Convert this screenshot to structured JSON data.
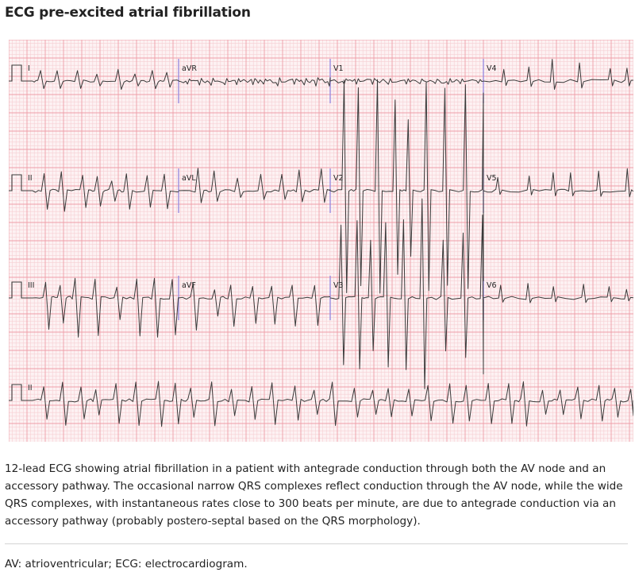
{
  "figure": {
    "title": "ECG pre-excited atrial fibrillation",
    "caption": "12-lead ECG showing atrial fibrillation in a patient with antegrade conduction through both the AV node and an accessory pathway. The occasional narrow QRS complexes reflect conduction through the AV node, while the wide QRS complexes, with instantaneous rates close to 300 beats per minute, are due to antegrade conduction via an accessory pathway (probably postero-septal based on the QRS morphology).",
    "abbreviations": "AV: atrioventricular; ECG: electrocardiogram."
  },
  "ecg": {
    "rows": [
      {
        "leads": [
          {
            "label": "I"
          },
          {
            "label": "aVR"
          },
          {
            "label": "V1"
          },
          {
            "label": "V4"
          }
        ]
      },
      {
        "leads": [
          {
            "label": "II"
          },
          {
            "label": "aVL"
          },
          {
            "label": "V2"
          },
          {
            "label": "V5"
          }
        ]
      },
      {
        "leads": [
          {
            "label": "III"
          },
          {
            "label": "aVF"
          },
          {
            "label": "V3"
          },
          {
            "label": "V6"
          }
        ]
      },
      {
        "leads": [
          {
            "label": "II"
          }
        ]
      }
    ]
  },
  "colors": {
    "grid_minor": "#f6cfd3",
    "grid_major": "#ee9ea8",
    "background": "#fdf2f3",
    "trace": "#3a3a3a",
    "separator": "#9a8ddf",
    "text": "#222222",
    "divider": "#d4d4d4"
  }
}
